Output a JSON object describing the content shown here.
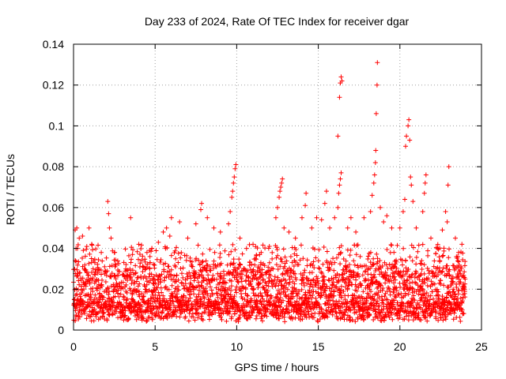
{
  "chart_data": {
    "type": "scatter",
    "title": "Day 233 of 2024, Rate Of TEC Index for receiver dgar",
    "xlabel": "GPS time / hours",
    "ylabel": "ROTI / TECUs",
    "xlim": [
      0,
      25
    ],
    "ylim": [
      0,
      0.14
    ],
    "xticks": [
      0,
      5,
      10,
      15,
      20,
      25
    ],
    "xtick_labels": [
      "0",
      "5",
      "10",
      "15",
      "20",
      "25"
    ],
    "yticks": [
      0,
      0.02,
      0.04,
      0.06,
      0.08,
      0.1,
      0.12,
      0.14
    ],
    "ytick_labels": [
      "0",
      "0.02",
      "0.04",
      "0.06",
      "0.08",
      "0.1",
      "0.12",
      "0.14"
    ],
    "grid": true,
    "marker": "+",
    "series": [
      {
        "name": "ROTI",
        "color": "#ff0000",
        "baseline_range": [
          0.004,
          0.03
        ],
        "time_range": [
          0,
          24
        ],
        "points": [
          [
            0.1,
            0.049
          ],
          [
            0.15,
            0.04
          ],
          [
            0.2,
            0.05
          ],
          [
            0.35,
            0.045
          ],
          [
            0.55,
            0.046
          ],
          [
            0.6,
            0.039
          ],
          [
            0.95,
            0.05
          ],
          [
            1.1,
            0.035
          ],
          [
            1.2,
            0.03
          ],
          [
            1.7,
            0.038
          ],
          [
            2.1,
            0.063
          ],
          [
            2.15,
            0.057
          ],
          [
            2.2,
            0.05
          ],
          [
            2.3,
            0.045
          ],
          [
            2.5,
            0.038
          ],
          [
            3.5,
            0.055
          ],
          [
            4.0,
            0.042
          ],
          [
            4.5,
            0.038
          ],
          [
            4.8,
            0.04
          ],
          [
            5.2,
            0.043
          ],
          [
            5.5,
            0.048
          ],
          [
            5.7,
            0.05
          ],
          [
            5.9,
            0.046
          ],
          [
            6.0,
            0.055
          ],
          [
            6.5,
            0.053
          ],
          [
            7.0,
            0.045
          ],
          [
            7.5,
            0.052
          ],
          [
            7.8,
            0.059
          ],
          [
            7.85,
            0.062
          ],
          [
            8.2,
            0.055
          ],
          [
            8.6,
            0.05
          ],
          [
            9.0,
            0.048
          ],
          [
            9.5,
            0.052
          ],
          [
            9.6,
            0.058
          ],
          [
            9.7,
            0.065
          ],
          [
            9.75,
            0.068
          ],
          [
            9.8,
            0.072
          ],
          [
            9.85,
            0.075
          ],
          [
            9.9,
            0.079
          ],
          [
            9.95,
            0.081
          ],
          [
            10.2,
            0.045
          ],
          [
            10.6,
            0.04
          ],
          [
            11.0,
            0.042
          ],
          [
            11.5,
            0.038
          ],
          [
            12.0,
            0.041
          ],
          [
            12.4,
            0.055
          ],
          [
            12.5,
            0.06
          ],
          [
            12.6,
            0.065
          ],
          [
            12.65,
            0.068
          ],
          [
            12.7,
            0.07
          ],
          [
            12.75,
            0.072
          ],
          [
            12.8,
            0.074
          ],
          [
            12.9,
            0.05
          ],
          [
            13.2,
            0.048
          ],
          [
            13.6,
            0.045
          ],
          [
            14.0,
            0.055
          ],
          [
            14.2,
            0.061
          ],
          [
            14.25,
            0.067
          ],
          [
            14.6,
            0.05
          ],
          [
            14.9,
            0.055
          ],
          [
            15.2,
            0.054
          ],
          [
            15.4,
            0.062
          ],
          [
            15.5,
            0.068
          ],
          [
            15.7,
            0.05
          ],
          [
            16.0,
            0.055
          ],
          [
            16.2,
            0.06
          ],
          [
            16.25,
            0.067
          ],
          [
            16.3,
            0.071
          ],
          [
            16.35,
            0.074
          ],
          [
            16.4,
            0.077
          ],
          [
            16.2,
            0.095
          ],
          [
            16.3,
            0.114
          ],
          [
            16.35,
            0.121
          ],
          [
            16.4,
            0.124
          ],
          [
            16.45,
            0.122
          ],
          [
            16.8,
            0.05
          ],
          [
            17.0,
            0.055
          ],
          [
            17.3,
            0.048
          ],
          [
            17.8,
            0.055
          ],
          [
            18.2,
            0.058
          ],
          [
            18.3,
            0.066
          ],
          [
            18.4,
            0.072
          ],
          [
            18.45,
            0.076
          ],
          [
            18.5,
            0.082
          ],
          [
            18.52,
            0.088
          ],
          [
            18.55,
            0.106
          ],
          [
            18.6,
            0.12
          ],
          [
            18.62,
            0.131
          ],
          [
            18.8,
            0.06
          ],
          [
            19.0,
            0.053
          ],
          [
            19.2,
            0.056
          ],
          [
            19.5,
            0.05
          ],
          [
            20.0,
            0.05
          ],
          [
            20.2,
            0.058
          ],
          [
            20.3,
            0.064
          ],
          [
            20.35,
            0.09
          ],
          [
            20.4,
            0.095
          ],
          [
            20.5,
            0.1
          ],
          [
            20.55,
            0.103
          ],
          [
            20.6,
            0.093
          ],
          [
            20.65,
            0.075
          ],
          [
            20.7,
            0.071
          ],
          [
            20.8,
            0.063
          ],
          [
            21.0,
            0.05
          ],
          [
            21.4,
            0.058
          ],
          [
            21.5,
            0.067
          ],
          [
            21.55,
            0.072
          ],
          [
            21.6,
            0.076
          ],
          [
            21.9,
            0.045
          ],
          [
            22.3,
            0.04
          ],
          [
            22.6,
            0.049
          ],
          [
            22.8,
            0.058
          ],
          [
            22.9,
            0.053
          ],
          [
            22.95,
            0.071
          ],
          [
            23.0,
            0.08
          ],
          [
            23.4,
            0.045
          ],
          [
            23.6,
            0.038
          ],
          [
            23.8,
            0.042
          ],
          [
            23.9,
            0.026
          ],
          [
            24.0,
            0.025
          ]
        ]
      }
    ]
  }
}
